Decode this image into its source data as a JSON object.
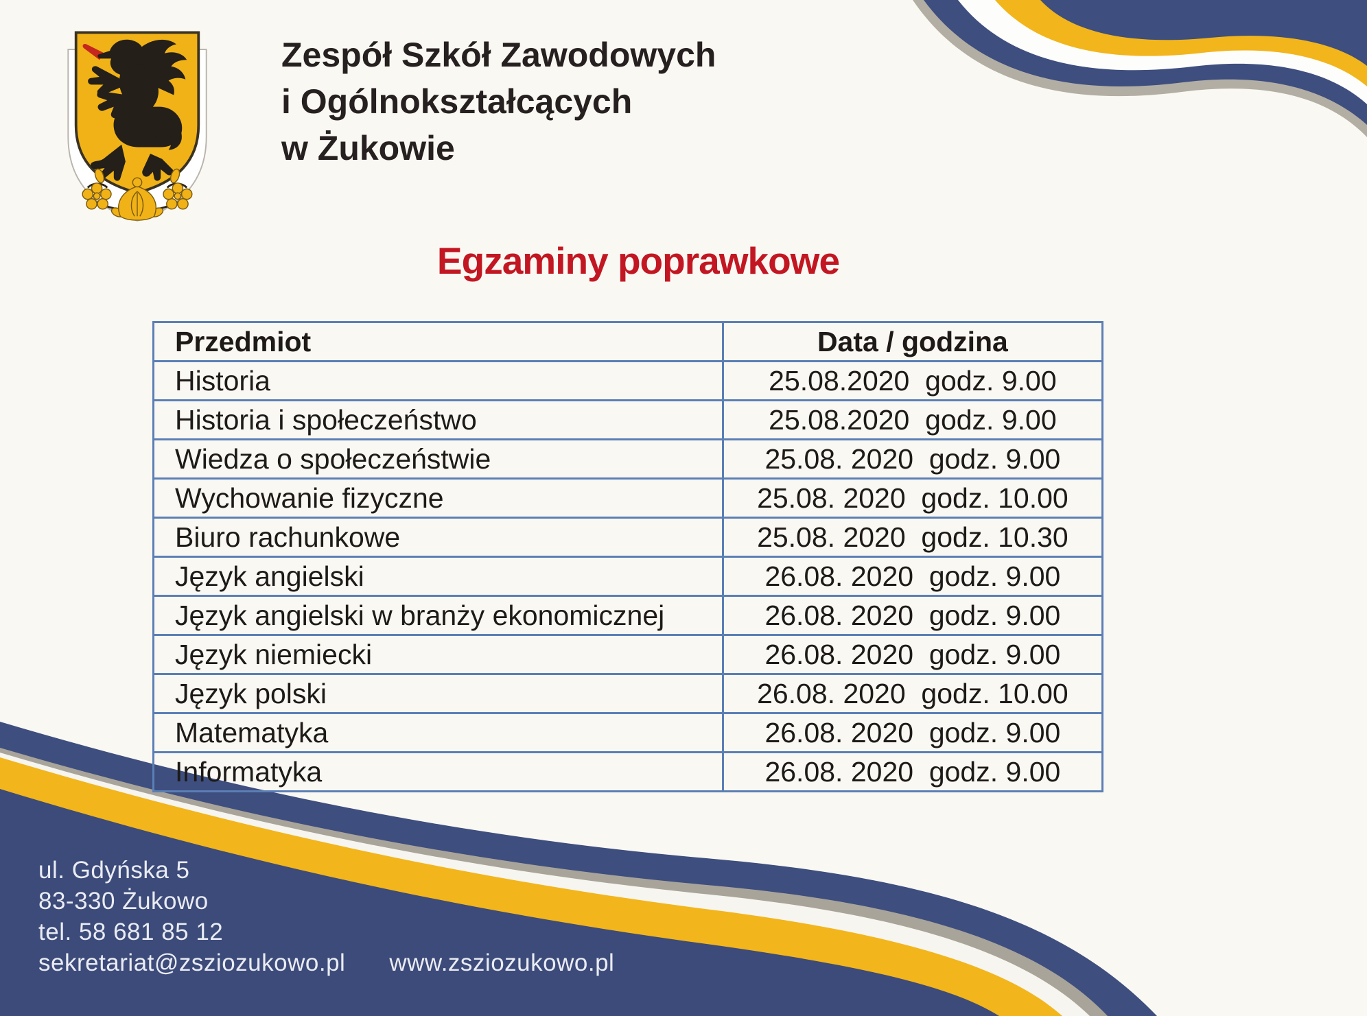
{
  "header": {
    "school_name_line1": "Zespół Szkół Zawodowych",
    "school_name_line2": "i Ogólnokształcących",
    "school_name_line3": "w Żukowie"
  },
  "title": "Egzaminy poprawkowe",
  "table": {
    "headers": {
      "subject": "Przedmiot",
      "datetime": "Data / godzina"
    },
    "rows": [
      {
        "subject": "Historia",
        "datetime": "25.08.2020  godz. 9.00"
      },
      {
        "subject": "Historia i społeczeństwo",
        "datetime": "25.08.2020  godz. 9.00"
      },
      {
        "subject": "Wiedza o społeczeństwie",
        "datetime": "25.08. 2020  godz. 9.00"
      },
      {
        "subject": "Wychowanie fizyczne",
        "datetime": "25.08. 2020  godz. 10.00"
      },
      {
        "subject": "Biuro rachunkowe",
        "datetime": "25.08. 2020  godz. 10.30"
      },
      {
        "subject": "Język angielski",
        "datetime": "26.08. 2020  godz. 9.00"
      },
      {
        "subject": "Język angielski w branży ekonomicznej",
        "datetime": "26.08. 2020  godz. 9.00"
      },
      {
        "subject": "Język niemiecki",
        "datetime": "26.08. 2020  godz. 9.00"
      },
      {
        "subject": "Język polski",
        "datetime": "26.08. 2020  godz. 10.00"
      },
      {
        "subject": "Matematyka",
        "datetime": "26.08. 2020  godz. 9.00"
      },
      {
        "subject": "Informatyka",
        "datetime": "26.08. 2020  godz. 9.00"
      }
    ]
  },
  "footer": {
    "address_line1": "ul. Gdyńska 5",
    "address_line2": "83-330 Żukowo",
    "phone": "tel. 58 681 85 12",
    "email": "sekretariat@zsziozukowo.pl",
    "website": "www.zsziozukowo.pl"
  },
  "icons": {
    "logo": "school-coat-of-arms-griffin"
  },
  "colors": {
    "navy": "#3E4E7E",
    "ribbon_yellow": "#F2B51B",
    "crest_yellow": "#F0B217",
    "title_red": "#C21722",
    "table_border_blue": "#5B7FB5",
    "page_background": "#FAF8F3",
    "footer_text": "#EAECF2"
  }
}
